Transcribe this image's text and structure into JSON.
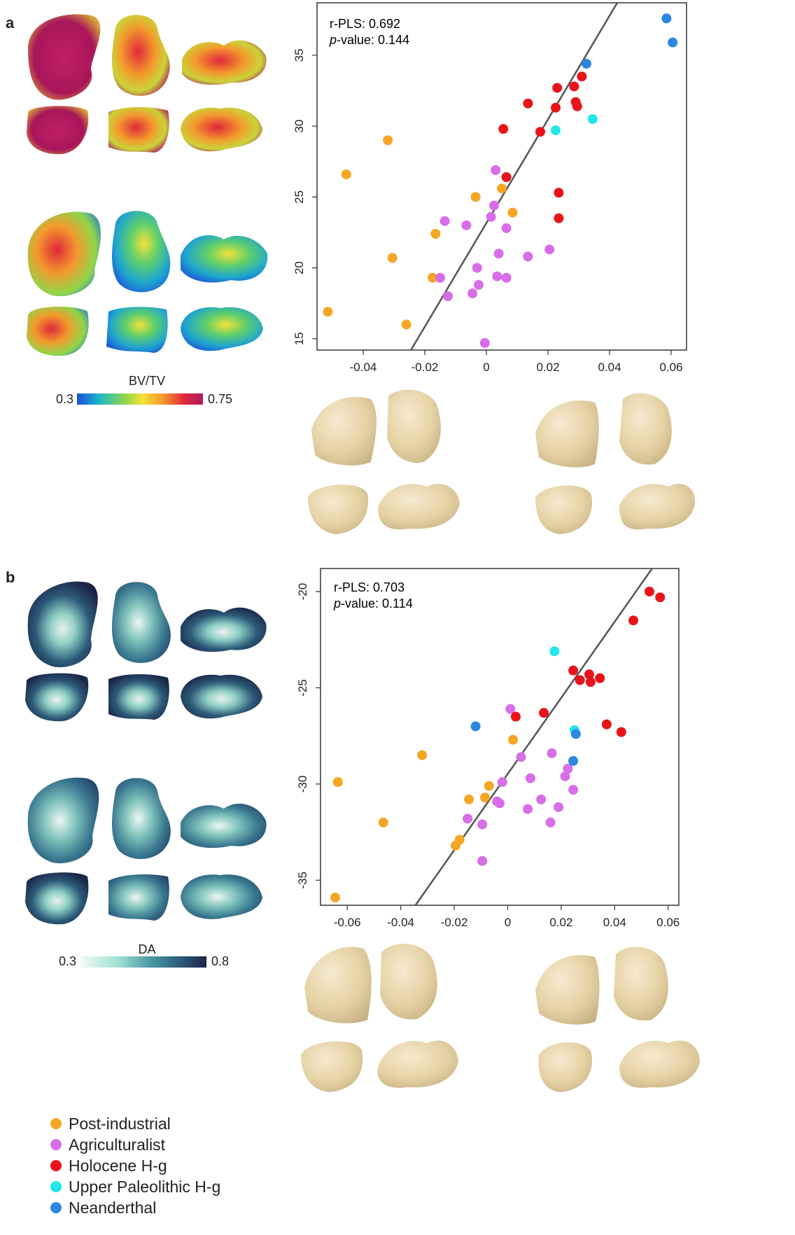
{
  "panels": [
    {
      "letter": "a",
      "colorbar": {
        "title": "BV/TV",
        "min_label": "0.3",
        "max_label": "0.75"
      },
      "annotation": {
        "r_label": "r-PLS: 0.692",
        "p_italic": "p",
        "p_rest": "-value: 0.144"
      }
    },
    {
      "letter": "b",
      "colorbar": {
        "title": "DA",
        "min_label": "0.3",
        "max_label": "0.8"
      },
      "annotation": {
        "r_label": "r-PLS: 0.703",
        "p_italic": "p",
        "p_rest": "-value: 0.114"
      }
    }
  ],
  "legend": [
    {
      "label": "Post-industrial",
      "color": "#f5a623"
    },
    {
      "label": "Agriculturalist",
      "color": "#d86de8"
    },
    {
      "label": "Holocene H-g",
      "color": "#e8141a"
    },
    {
      "label": "Upper Paleolithic H-g",
      "color": "#22e6e8"
    },
    {
      "label": "Neanderthal",
      "color": "#2b88e0"
    }
  ],
  "colors": {
    "bvtv_scale": [
      "#1a4fd6",
      "#1fb8c9",
      "#8fd64a",
      "#f3e23a",
      "#f39a2c",
      "#e0283c",
      "#b01a5c"
    ],
    "da_scale": [
      "#f2fbf8",
      "#9fe0d2",
      "#4a9aa6",
      "#2c5a78",
      "#1b2548"
    ],
    "bone_beige": "#e9d9b0",
    "regression_line": "#555555"
  },
  "chart_data": [
    {
      "type": "scatter",
      "title": "",
      "xlabel": "",
      "ylabel": "",
      "xlim": [
        -0.055,
        0.065
      ],
      "ylim": [
        14.2,
        38.7
      ],
      "xticks": [
        -0.04,
        -0.02,
        0,
        0.02,
        0.04,
        0.06
      ],
      "xtick_labels": [
        "-0.04",
        "-0.02",
        "0",
        "0.02",
        "0.04",
        "0.06"
      ],
      "yticks": [
        15,
        20,
        25,
        30,
        35
      ],
      "ytick_labels": [
        "15",
        "20",
        "25",
        "30",
        "35"
      ],
      "regression_line": [
        [
          -0.0245,
          14.2
        ],
        [
          0.0425,
          38.7
        ]
      ],
      "series": [
        {
          "name": "Post-industrial",
          "color": "#f5a623",
          "points": [
            [
              -0.0515,
              16.9
            ],
            [
              -0.0455,
              26.6
            ],
            [
              -0.032,
              29.0
            ],
            [
              -0.0305,
              20.7
            ],
            [
              -0.026,
              16.0
            ],
            [
              -0.0175,
              19.3
            ],
            [
              -0.0165,
              22.4
            ],
            [
              -0.0035,
              25.0
            ],
            [
              0.005,
              25.6
            ],
            [
              0.0085,
              23.9
            ]
          ]
        },
        {
          "name": "Agriculturalist",
          "color": "#d86de8",
          "points": [
            [
              -0.015,
              19.3
            ],
            [
              -0.0135,
              23.3
            ],
            [
              -0.0125,
              18.0
            ],
            [
              -0.0065,
              23.0
            ],
            [
              -0.0045,
              18.2
            ],
            [
              -0.003,
              20.0
            ],
            [
              -0.0025,
              18.8
            ],
            [
              -0.0005,
              14.7
            ],
            [
              0.0015,
              23.6
            ],
            [
              0.0025,
              24.4
            ],
            [
              0.003,
              26.9
            ],
            [
              0.0035,
              19.4
            ],
            [
              0.004,
              21.0
            ],
            [
              0.0065,
              22.8
            ],
            [
              0.0065,
              19.3
            ],
            [
              0.0135,
              20.8
            ],
            [
              0.0205,
              21.3
            ]
          ]
        },
        {
          "name": "Holocene H-g",
          "color": "#e8141a",
          "points": [
            [
              0.0055,
              29.8
            ],
            [
              0.0065,
              26.4
            ],
            [
              0.0135,
              31.6
            ],
            [
              0.0175,
              29.6
            ],
            [
              0.0225,
              31.3
            ],
            [
              0.023,
              32.7
            ],
            [
              0.0235,
              25.3
            ],
            [
              0.0235,
              23.5
            ],
            [
              0.0285,
              32.8
            ],
            [
              0.029,
              31.7
            ],
            [
              0.0295,
              31.4
            ],
            [
              0.031,
              33.5
            ]
          ]
        },
        {
          "name": "Upper Paleolithic H-g",
          "color": "#22e6e8",
          "points": [
            [
              0.0225,
              29.7
            ],
            [
              0.0345,
              30.5
            ]
          ]
        },
        {
          "name": "Neanderthal",
          "color": "#2b88e0",
          "points": [
            [
              0.0325,
              34.4
            ],
            [
              0.0585,
              37.6
            ],
            [
              0.0605,
              35.9
            ]
          ]
        }
      ]
    },
    {
      "type": "scatter",
      "title": "",
      "xlabel": "",
      "ylabel": "",
      "xlim": [
        -0.07,
        0.064
      ],
      "ylim": [
        -36.3,
        -18.8
      ],
      "xticks": [
        -0.06,
        -0.04,
        -0.02,
        0,
        0.02,
        0.04,
        0.06
      ],
      "xtick_labels": [
        "-0.06",
        "-0.04",
        "-0.02",
        "0",
        "0.02",
        "0.04",
        "0.06"
      ],
      "yticks": [
        -35,
        -30,
        -25,
        -20
      ],
      "ytick_labels": [
        "-35",
        "-30",
        "-25",
        "-20"
      ],
      "regression_line": [
        [
          -0.0345,
          -36.3
        ],
        [
          0.054,
          -18.8
        ]
      ],
      "series": [
        {
          "name": "Post-industrial",
          "color": "#f5a623",
          "points": [
            [
              -0.0635,
              -29.9
            ],
            [
              -0.0645,
              -35.9
            ],
            [
              -0.0465,
              -32.0
            ],
            [
              -0.032,
              -28.5
            ],
            [
              -0.0195,
              -33.2
            ],
            [
              -0.018,
              -32.9
            ],
            [
              -0.0145,
              -30.8
            ],
            [
              -0.0085,
              -30.7
            ],
            [
              -0.007,
              -30.1
            ],
            [
              0.002,
              -27.7
            ]
          ]
        },
        {
          "name": "Agriculturalist",
          "color": "#d86de8",
          "points": [
            [
              -0.015,
              -31.8
            ],
            [
              -0.0095,
              -34.0
            ],
            [
              -0.0095,
              -32.1
            ],
            [
              -0.004,
              -30.9
            ],
            [
              -0.003,
              -31.0
            ],
            [
              -0.002,
              -29.9
            ],
            [
              0.001,
              -26.1
            ],
            [
              0.005,
              -28.6
            ],
            [
              0.0075,
              -31.3
            ],
            [
              0.0085,
              -29.7
            ],
            [
              0.0125,
              -30.8
            ],
            [
              0.016,
              -32.0
            ],
            [
              0.0165,
              -28.4
            ],
            [
              0.019,
              -31.2
            ],
            [
              0.0215,
              -29.6
            ],
            [
              0.0225,
              -29.2
            ],
            [
              0.0245,
              -30.3
            ]
          ]
        },
        {
          "name": "Holocene H-g",
          "color": "#e8141a",
          "points": [
            [
              0.003,
              -26.5
            ],
            [
              0.0135,
              -26.3
            ],
            [
              0.0245,
              -24.1
            ],
            [
              0.027,
              -24.6
            ],
            [
              0.0305,
              -24.3
            ],
            [
              0.031,
              -24.7
            ],
            [
              0.0345,
              -24.5
            ],
            [
              0.037,
              -26.9
            ],
            [
              0.0425,
              -27.3
            ],
            [
              0.047,
              -21.5
            ],
            [
              0.053,
              -20.0
            ],
            [
              0.057,
              -20.3
            ]
          ]
        },
        {
          "name": "Upper Paleolithic H-g",
          "color": "#22e6e8",
          "points": [
            [
              0.0175,
              -23.1
            ],
            [
              0.025,
              -27.2
            ]
          ]
        },
        {
          "name": "Neanderthal",
          "color": "#2b88e0",
          "points": [
            [
              -0.012,
              -27.0
            ],
            [
              0.0245,
              -28.8
            ],
            [
              0.0255,
              -27.4
            ]
          ]
        }
      ]
    }
  ]
}
